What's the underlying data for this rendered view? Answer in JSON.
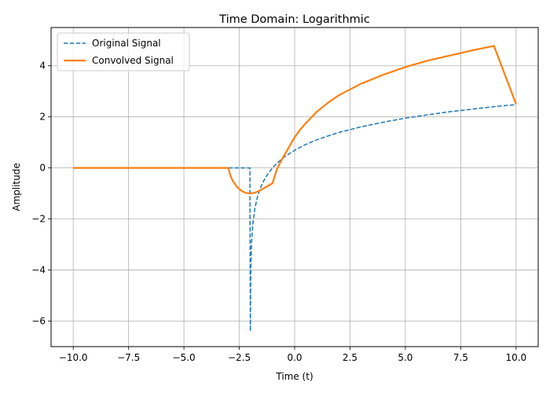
{
  "chart_data": {
    "type": "line",
    "title": "Time Domain: Logarithmic",
    "xlabel": "Time (t)",
    "ylabel": "Amplitude",
    "xlim": [
      -11.0,
      11.0
    ],
    "ylim": [
      -7.0,
      5.5
    ],
    "xticks": [
      -10.0,
      -7.5,
      -5.0,
      -2.5,
      0.0,
      2.5,
      5.0,
      7.5,
      10.0
    ],
    "xtick_labels": [
      "−10.0",
      "−7.5",
      "−5.0",
      "−2.5",
      "0.0",
      "2.5",
      "5.0",
      "7.5",
      "10.0"
    ],
    "yticks": [
      -6,
      -4,
      -2,
      0,
      2,
      4
    ],
    "ytick_labels": [
      "−6",
      "−4",
      "−2",
      "0",
      "2",
      "4"
    ],
    "grid": true,
    "legend_position": "top-left",
    "series": [
      {
        "name": "Original Signal",
        "color": "#1f77b4",
        "style": "dashed",
        "x": [
          -10,
          -9,
          -8,
          -7,
          -6,
          -5,
          -4,
          -3,
          -2.02,
          -2.0,
          -1.98,
          -1.95,
          -1.9,
          -1.8,
          -1.7,
          -1.6,
          -1.5,
          -1.4,
          -1.2,
          -1.0,
          -0.8,
          -0.5,
          0.0,
          0.5,
          1.0,
          1.5,
          2.0,
          2.5,
          3.0,
          4.0,
          5.0,
          6.0,
          7.0,
          8.0,
          9.0,
          10.0
        ],
        "y": [
          0,
          0,
          0,
          0,
          0,
          0,
          0,
          0,
          0,
          -6.4,
          -3.91,
          -3.0,
          -2.3,
          -1.61,
          -1.2,
          -0.92,
          -0.69,
          -0.51,
          -0.22,
          0.0,
          0.18,
          0.41,
          0.69,
          0.92,
          1.1,
          1.25,
          1.39,
          1.5,
          1.61,
          1.79,
          1.95,
          2.08,
          2.2,
          2.3,
          2.4,
          2.48
        ]
      },
      {
        "name": "Convolved Signal",
        "color": "#ff7f0e",
        "style": "solid",
        "x": [
          -10,
          -9,
          -8,
          -7,
          -6,
          -5,
          -4,
          -3,
          -2.9,
          -2.8,
          -2.6,
          -2.4,
          -2.2,
          -2.0,
          -1.8,
          -1.6,
          -1.4,
          -1.2,
          -1.0,
          -0.8,
          -0.6,
          -0.4,
          -0.2,
          0.0,
          0.25,
          0.5,
          1.0,
          1.5,
          2.0,
          3.0,
          4.0,
          5.0,
          6.0,
          7.0,
          8.0,
          9.0,
          10.0
        ],
        "y": [
          0,
          0,
          0,
          0,
          0,
          0,
          0,
          0,
          -0.3,
          -0.5,
          -0.75,
          -0.9,
          -0.98,
          -1.0,
          -0.97,
          -0.9,
          -0.8,
          -0.7,
          -0.6,
          -0.05,
          0.3,
          0.6,
          0.9,
          1.2,
          1.5,
          1.75,
          2.2,
          2.55,
          2.85,
          3.3,
          3.65,
          3.95,
          4.2,
          4.4,
          4.6,
          4.78,
          2.5
        ]
      }
    ]
  }
}
